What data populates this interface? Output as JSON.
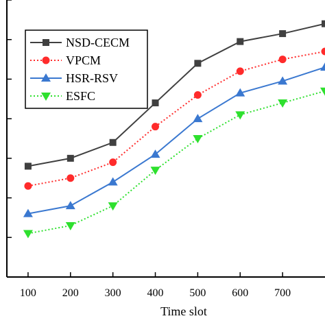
{
  "chart_data": {
    "type": "line",
    "xlabel": "Time slot",
    "ylabel": "",
    "x": [
      100,
      200,
      300,
      400,
      500,
      600,
      700,
      800
    ],
    "xlim": [
      50,
      800
    ],
    "ylim": [
      0,
      7
    ],
    "x_ticks": [
      100,
      200,
      300,
      400,
      500,
      600,
      700
    ],
    "y_ticks": [
      1,
      2,
      3,
      4,
      5,
      6,
      7
    ],
    "legend_position": "top-left",
    "grid": false,
    "series": [
      {
        "name": "NSD-CECM",
        "color": "#404040",
        "marker": "square",
        "dash": "solid",
        "values": [
          2.8,
          3.0,
          3.4,
          4.4,
          5.4,
          5.95,
          6.15,
          6.4
        ]
      },
      {
        "name": "VPCM",
        "color": "#ff2b2b",
        "marker": "circle",
        "dash": "dotted",
        "values": [
          2.3,
          2.5,
          2.9,
          3.8,
          4.6,
          5.2,
          5.5,
          5.7
        ]
      },
      {
        "name": "HSR-RSV",
        "color": "#3a78d0",
        "marker": "triangle-up",
        "dash": "solid",
        "values": [
          1.6,
          1.8,
          2.4,
          3.1,
          4.0,
          4.65,
          4.95,
          5.3
        ]
      },
      {
        "name": "ESFC",
        "color": "#2ee02e",
        "marker": "triangle-down",
        "dash": "dotted",
        "values": [
          1.1,
          1.3,
          1.8,
          2.7,
          3.5,
          4.1,
          4.4,
          4.7
        ]
      }
    ]
  }
}
